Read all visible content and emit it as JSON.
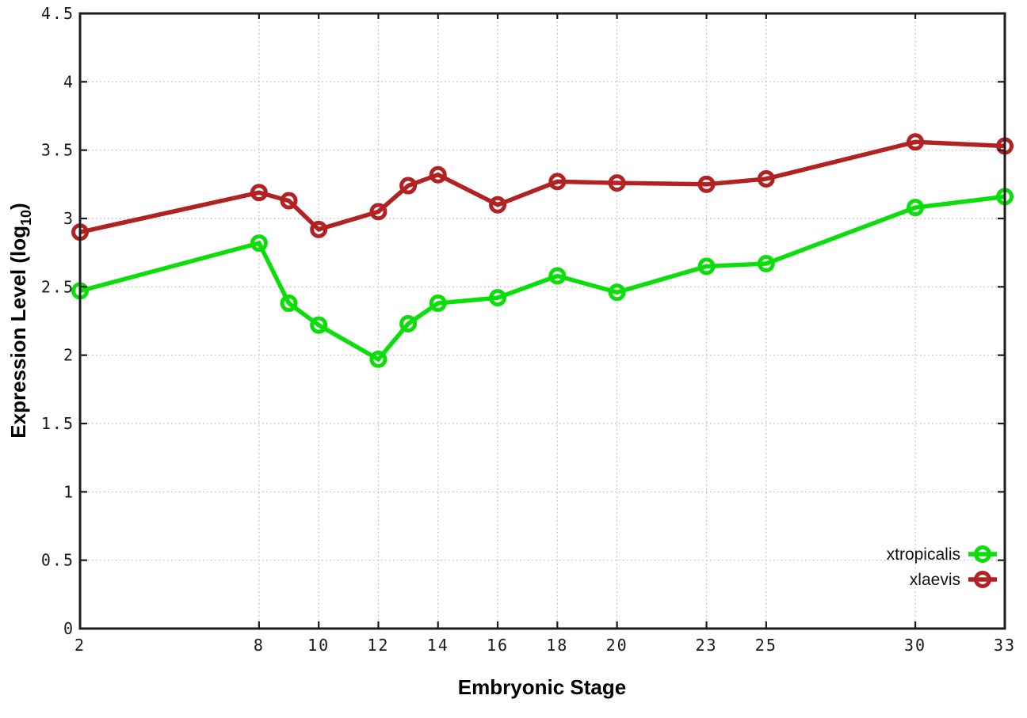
{
  "labels": {
    "ylabel_pre": "Expression Level (log",
    "ylabel_sub": "10",
    "ylabel_post": ")"
  },
  "chart_data": {
    "type": "line",
    "title": "",
    "xlabel": "Embryonic Stage",
    "ylabel": "Expression Level (log10)",
    "xlim": [
      2,
      33
    ],
    "ylim": [
      0,
      4.5
    ],
    "grid": true,
    "grid_style": "dotted",
    "legend_position": "bottom-right",
    "marker": "open-circle",
    "x": [
      2,
      8,
      9,
      10,
      12,
      13,
      14,
      16,
      18,
      20,
      23,
      25,
      30,
      33
    ],
    "xtick_values": [
      2,
      8,
      10,
      12,
      14,
      16,
      18,
      20,
      23,
      25,
      30,
      33
    ],
    "xtick_labels": [
      "2",
      "8",
      "10",
      "12",
      "14",
      "16",
      "18",
      "20",
      "23",
      "25",
      "30",
      "33"
    ],
    "ytick_values": [
      0,
      0.5,
      1,
      1.5,
      2,
      2.5,
      3,
      3.5,
      4,
      4.5
    ],
    "ytick_labels": [
      "0",
      "0.5",
      "1",
      "1.5",
      "2",
      "2.5",
      "3",
      "3.5",
      "4",
      "4.5"
    ],
    "series": [
      {
        "name": "xtropicalis",
        "color": "#0CDE0C",
        "values": [
          2.47,
          2.82,
          2.38,
          2.22,
          1.97,
          2.23,
          2.38,
          2.42,
          2.58,
          2.46,
          2.65,
          2.67,
          3.08,
          3.16
        ]
      },
      {
        "name": "xlaevis",
        "color": "#B22222",
        "values": [
          2.9,
          3.19,
          3.13,
          2.92,
          3.05,
          3.24,
          3.32,
          3.1,
          3.27,
          3.26,
          3.25,
          3.29,
          3.56,
          3.53
        ]
      }
    ]
  }
}
